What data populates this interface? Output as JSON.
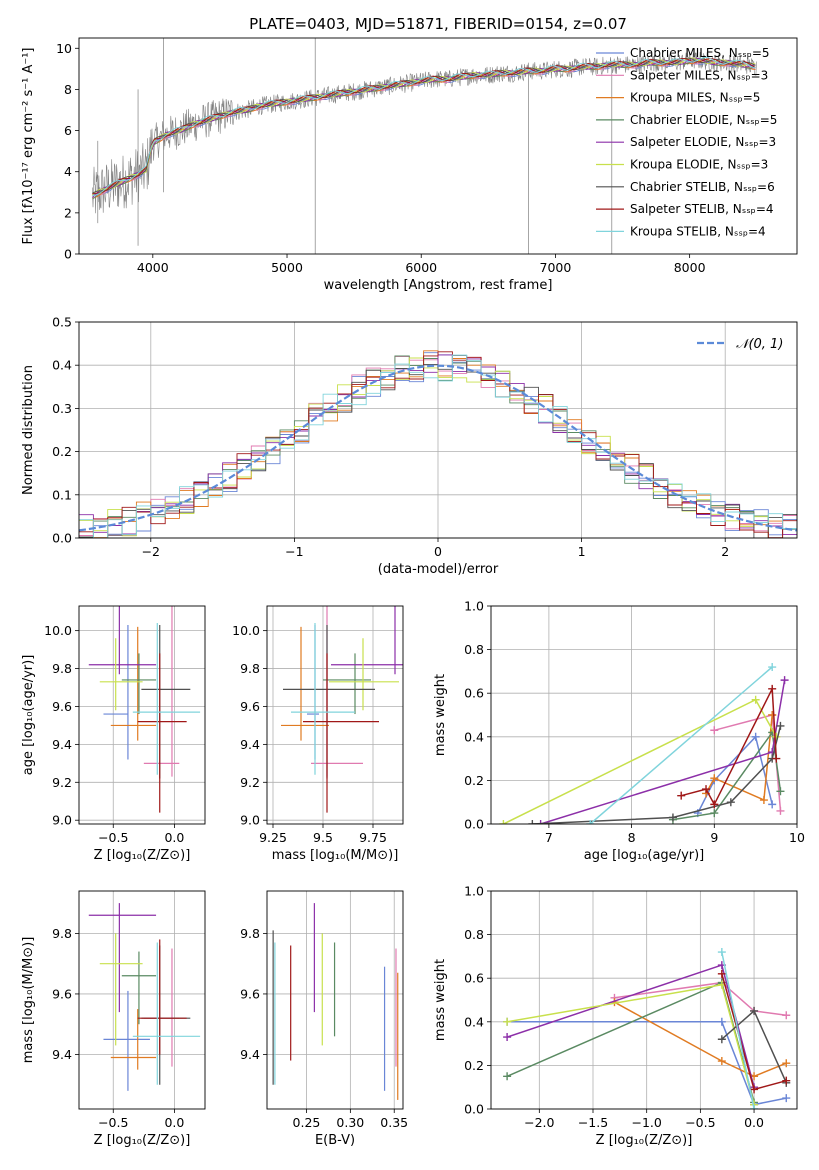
{
  "figure": {
    "title": "PLATE=0403, MJD=51871, FIBERID=0154, z=0.07"
  },
  "colors": {
    "chabrier_miles": "#6a86d6",
    "salpeter_miles": "#e07ab0",
    "kroupa_miles": "#e07b22",
    "chabrier_elodie": "#5a8a62",
    "salpeter_elodie": "#8c2fa8",
    "kroupa_elodie": "#c8e04c",
    "chabrier_stelib": "#505050",
    "salpeter_stelib": "#a01818",
    "kroupa_stelib": "#80d4dc",
    "data": "#808080",
    "normal": "#5b8ad8"
  },
  "chart_data": [
    {
      "type": "line",
      "panel": "spectrum",
      "title": "PLATE=0403, MJD=51871, FIBERID=0154, z=0.07",
      "xlabel": "wavelength [Angstrom, rest frame]",
      "ylabel": "Flux [fλ10⁻¹⁷ erg cm⁻² s⁻¹ A⁻¹]",
      "xlim": [
        3450,
        8800
      ],
      "ylim": [
        0,
        10.5
      ],
      "xticks": [
        4000,
        5000,
        6000,
        7000,
        8000
      ],
      "yticks": [
        0,
        2,
        4,
        6,
        8,
        10
      ],
      "grid": false,
      "legend_position": "right",
      "legend": [
        "Chabrier MILES, Nₛₛₚ=5",
        "Salpeter MILES, Nₛₛₚ=3",
        "Kroupa MILES, Nₛₛₚ=5",
        "Chabrier ELODIE, Nₛₛₚ=5",
        "Salpeter ELODIE, Nₛₛₚ=3",
        "Kroupa ELODIE, Nₛₛₚ=3",
        "Chabrier STELIB, Nₛₛₚ=6",
        "Salpeter STELIB, Nₛₛₚ=4",
        "Kroupa STELIB, Nₛₛₚ=4"
      ],
      "model_x": [
        3550,
        3600,
        3700,
        3800,
        3900,
        3950,
        4000,
        4100,
        4200,
        4300,
        4400,
        4500,
        4600,
        4700,
        4800,
        4900,
        5000,
        5100,
        5200,
        5300,
        5400,
        5500,
        5600,
        5700,
        5800,
        5900,
        6000,
        6100,
        6200,
        6300,
        6400,
        6500,
        6600,
        6700,
        6800,
        6900,
        7000,
        7100,
        7200,
        7300,
        7400,
        7500,
        7600,
        7700,
        7800,
        7900,
        8000,
        8100,
        8200,
        8300,
        8400,
        8500
      ],
      "model_y": [
        2.8,
        3.0,
        3.3,
        3.6,
        3.9,
        4.1,
        5.4,
        5.8,
        6.0,
        6.3,
        6.5,
        6.7,
        6.9,
        7.0,
        7.2,
        7.3,
        7.4,
        7.5,
        7.6,
        7.7,
        7.8,
        7.9,
        8.0,
        8.1,
        8.2,
        8.3,
        8.4,
        8.5,
        8.5,
        8.6,
        8.7,
        8.7,
        8.8,
        8.8,
        8.9,
        8.9,
        9.0,
        9.0,
        9.1,
        9.1,
        9.2,
        9.2,
        9.2,
        9.3,
        9.3,
        9.3,
        9.4,
        9.4,
        9.3,
        9.3,
        9.2,
        9.1
      ]
    },
    {
      "type": "line",
      "panel": "residuals",
      "xlabel": "(data-model)/error",
      "ylabel": "Normed distribution",
      "xlim": [
        -2.5,
        2.5
      ],
      "ylim": [
        0,
        0.5
      ],
      "xticks": [
        -2,
        -1,
        0,
        1,
        2
      ],
      "yticks": [
        0.0,
        0.1,
        0.2,
        0.3,
        0.4,
        0.5
      ],
      "grid": true,
      "legend_position": "top-right",
      "legend": [
        "𝒩(0, 1)"
      ],
      "bins": [
        -2.5,
        -2.4,
        -2.3,
        -2.2,
        -2.1,
        -2.0,
        -1.9,
        -1.8,
        -1.7,
        -1.6,
        -1.5,
        -1.4,
        -1.3,
        -1.2,
        -1.1,
        -1.0,
        -0.9,
        -0.8,
        -0.7,
        -0.6,
        -0.5,
        -0.4,
        -0.3,
        -0.2,
        -0.1,
        0.0,
        0.1,
        0.2,
        0.3,
        0.4,
        0.5,
        0.6,
        0.7,
        0.8,
        0.9,
        1.0,
        1.1,
        1.2,
        1.3,
        1.4,
        1.5,
        1.6,
        1.7,
        1.8,
        1.9,
        2.0,
        2.1,
        2.2,
        2.3,
        2.4,
        2.5
      ]
    },
    {
      "type": "scatter",
      "panel": "age-vs-Z",
      "xlabel": "Z [log₁₀(Z/Z⊙)]",
      "ylabel": "age  [log₁₀(age/yr)]",
      "xlim": [
        -0.78,
        0.25
      ],
      "ylim": [
        8.98,
        10.13
      ],
      "xticks": [
        -0.5,
        0.0
      ],
      "xticklabels": [
        "−0.5",
        "0.0"
      ],
      "yticks": [
        9.0,
        9.2,
        9.4,
        9.6,
        9.8,
        10.0
      ],
      "grid": true,
      "points": [
        {
          "series": "chabrier_miles",
          "x": -0.38,
          "xerr": [
            0.2,
            0.0
          ],
          "y": 9.56,
          "yerr": [
            0.24,
            0.47
          ]
        },
        {
          "series": "salpeter_miles",
          "x": -0.02,
          "xerr": [
            0.23,
            0.06
          ],
          "y": 9.3,
          "yerr": [
            0.07,
            0.87
          ]
        },
        {
          "series": "kroupa_miles",
          "x": -0.3,
          "xerr": [
            0.22,
            0.15
          ],
          "y": 9.5,
          "yerr": [
            0.08,
            0.52
          ]
        },
        {
          "series": "chabrier_elodie",
          "x": -0.29,
          "xerr": [
            0.14,
            0.14
          ],
          "y": 9.74,
          "yerr": [
            0.18,
            0.14
          ]
        },
        {
          "series": "salpeter_elodie",
          "x": -0.45,
          "xerr": [
            0.25,
            0.3
          ],
          "y": 9.82,
          "yerr": [
            0.05,
            0.4
          ]
        },
        {
          "series": "kroupa_elodie",
          "x": -0.48,
          "xerr": [
            0.13,
            0.22
          ],
          "y": 9.73,
          "yerr": [
            0.15,
            0.23
          ]
        },
        {
          "series": "chabrier_stelib",
          "x": -0.12,
          "xerr": [
            0.15,
            0.25
          ],
          "y": 9.69,
          "yerr": [
            0.47,
            0.34
          ]
        },
        {
          "series": "salpeter_stelib",
          "x": -0.12,
          "xerr": [
            0.18,
            0.22
          ],
          "y": 9.52,
          "yerr": [
            0.48,
            0.36
          ]
        },
        {
          "series": "kroupa_stelib",
          "x": -0.14,
          "xerr": [
            0.2,
            0.35
          ],
          "y": 9.57,
          "yerr": [
            0.33,
            0.47
          ]
        }
      ]
    },
    {
      "type": "scatter",
      "panel": "age-vs-mass",
      "xlabel": "mass [log₁₀(M/M⊙)]",
      "xlim": [
        9.22,
        9.9
      ],
      "ylim": [
        8.98,
        10.13
      ],
      "xticks": [
        9.25,
        9.5,
        9.75
      ],
      "yticks": [
        9.0,
        9.2,
        9.4,
        9.6,
        9.8,
        10.0
      ],
      "grid": true,
      "points": [
        {
          "series": "chabrier_miles",
          "x": 9.46,
          "xerr": [
            0.04,
            0.02
          ],
          "y": 9.56,
          "yerr": [
            0.24,
            0.47
          ]
        },
        {
          "series": "salpeter_miles",
          "x": 9.52,
          "xerr": [
            0.08,
            0.18
          ],
          "y": 9.3,
          "yerr": [
            0.07,
            0.87
          ]
        },
        {
          "series": "kroupa_miles",
          "x": 9.39,
          "xerr": [
            0.1,
            0.14
          ],
          "y": 9.5,
          "yerr": [
            0.08,
            0.52
          ]
        },
        {
          "series": "chabrier_elodie",
          "x": 9.66,
          "xerr": [
            0.16,
            0.08
          ],
          "y": 9.74,
          "yerr": [
            0.18,
            0.14
          ]
        },
        {
          "series": "salpeter_elodie",
          "x": 9.86,
          "xerr": [
            0.32,
            0.1
          ],
          "y": 9.82,
          "yerr": [
            0.05,
            0.4
          ]
        },
        {
          "series": "kroupa_elodie",
          "x": 9.7,
          "xerr": [
            0.17,
            0.18
          ],
          "y": 9.73,
          "yerr": [
            0.15,
            0.23
          ]
        },
        {
          "series": "chabrier_stelib",
          "x": 9.52,
          "xerr": [
            0.22,
            0.24
          ],
          "y": 9.69,
          "yerr": [
            0.47,
            0.34
          ]
        },
        {
          "series": "salpeter_stelib",
          "x": 9.52,
          "xerr": [
            0.12,
            0.26
          ],
          "y": 9.52,
          "yerr": [
            0.48,
            0.36
          ]
        },
        {
          "series": "kroupa_stelib",
          "x": 9.46,
          "xerr": [
            0.12,
            0.2
          ],
          "y": 9.57,
          "yerr": [
            0.33,
            0.47
          ]
        }
      ]
    },
    {
      "type": "line",
      "panel": "weight-vs-age",
      "xlabel": "age  [log₁₀(age/yr)]",
      "ylabel": "mass weight",
      "xlim": [
        6.3,
        10.0
      ],
      "ylim": [
        0,
        1.0
      ],
      "xticks": [
        7,
        8,
        9,
        10
      ],
      "yticks": [
        0.0,
        0.2,
        0.4,
        0.6,
        0.8,
        1.0
      ],
      "grid": true,
      "series": [
        {
          "name": "chabrier_miles",
          "x": [
            8.8,
            9.0,
            9.5,
            9.7
          ],
          "y": [
            0.05,
            0.2,
            0.4,
            0.09
          ]
        },
        {
          "name": "salpeter_miles",
          "x": [
            9.0,
            9.7,
            9.8
          ],
          "y": [
            0.43,
            0.5,
            0.06
          ]
        },
        {
          "name": "kroupa_miles",
          "x": [
            8.9,
            9.0,
            9.6,
            9.7
          ],
          "y": [
            0.14,
            0.21,
            0.11,
            0.5
          ]
        },
        {
          "name": "chabrier_elodie",
          "x": [
            8.5,
            9.0,
            9.7,
            9.8
          ],
          "y": [
            0.02,
            0.05,
            0.42,
            0.15
          ]
        },
        {
          "name": "salpeter_elodie",
          "x": [
            6.9,
            9.7,
            9.85
          ],
          "y": [
            0.0,
            0.33,
            0.66
          ]
        },
        {
          "name": "kroupa_elodie",
          "x": [
            6.45,
            9.5,
            9.75
          ],
          "y": [
            0.0,
            0.57,
            0.4
          ]
        },
        {
          "name": "chabrier_stelib",
          "x": [
            6.8,
            8.5,
            9.2,
            9.7,
            9.8
          ],
          "y": [
            0.0,
            0.03,
            0.1,
            0.3,
            0.45
          ]
        },
        {
          "name": "salpeter_stelib",
          "x": [
            8.6,
            8.9,
            9.0,
            9.7,
            9.75
          ],
          "y": [
            0.13,
            0.16,
            0.09,
            0.62,
            0.3
          ]
        },
        {
          "name": "kroupa_stelib",
          "x": [
            7.5,
            9.7
          ],
          "y": [
            0.0,
            0.72
          ]
        }
      ]
    },
    {
      "type": "scatter",
      "panel": "mass-vs-Z",
      "xlabel": "Z [log₁₀(Z/Z⊙)]",
      "ylabel": "mass [log₁₀(M/M⊙)]",
      "xlim": [
        -0.78,
        0.25
      ],
      "ylim": [
        9.22,
        9.94
      ],
      "xticks": [
        -0.5,
        0.0
      ],
      "xticklabels": [
        "−0.5",
        "0.0"
      ],
      "yticks": [
        9.4,
        9.6,
        9.8
      ],
      "grid": true,
      "points": [
        {
          "series": "chabrier_miles",
          "x": -0.38,
          "xerr": [
            0.2,
            0.18
          ],
          "y": 9.45,
          "yerr": [
            0.17,
            0.16
          ]
        },
        {
          "series": "salpeter_miles",
          "x": -0.02,
          "xerr": [
            0.23,
            0.06
          ],
          "y": 9.52,
          "yerr": [
            0.16,
            0.23
          ]
        },
        {
          "series": "kroupa_miles",
          "x": -0.3,
          "xerr": [
            0.22,
            0.15
          ],
          "y": 9.39,
          "yerr": [
            0.04,
            0.16
          ]
        },
        {
          "series": "chabrier_elodie",
          "x": -0.29,
          "xerr": [
            0.14,
            0.14
          ],
          "y": 9.66,
          "yerr": [
            0.16,
            0.08
          ]
        },
        {
          "series": "salpeter_elodie",
          "x": -0.45,
          "xerr": [
            0.25,
            0.3
          ],
          "y": 9.86,
          "yerr": [
            0.32,
            0.04
          ]
        },
        {
          "series": "kroupa_elodie",
          "x": -0.48,
          "xerr": [
            0.13,
            0.22
          ],
          "y": 9.7,
          "yerr": [
            0.27,
            0.1
          ]
        },
        {
          "series": "chabrier_stelib",
          "x": -0.12,
          "xerr": [
            0.15,
            0.25
          ],
          "y": 9.52,
          "yerr": [
            0.22,
            0.24
          ]
        },
        {
          "series": "salpeter_stelib",
          "x": -0.12,
          "xerr": [
            0.18,
            0.22
          ],
          "y": 9.52,
          "yerr": [
            0.12,
            0.26
          ]
        },
        {
          "series": "kroupa_stelib",
          "x": -0.14,
          "xerr": [
            0.2,
            0.35
          ],
          "y": 9.46,
          "yerr": [
            0.16,
            0.31
          ]
        }
      ]
    },
    {
      "type": "scatter",
      "panel": "mass-vs-EBV",
      "xlabel": "E(B-V)",
      "xlim": [
        0.205,
        0.36
      ],
      "ylim": [
        9.22,
        9.94
      ],
      "xticks": [
        0.25,
        0.3,
        0.35
      ],
      "yticks": [
        9.4,
        9.6,
        9.8
      ],
      "grid": true,
      "points": [
        {
          "series": "chabrier_stelib",
          "x": 0.212,
          "y": 9.52,
          "yerr": [
            0.22,
            0.29
          ]
        },
        {
          "series": "kroupa_stelib",
          "x": 0.214,
          "y": 9.46,
          "yerr": [
            0.16,
            0.31
          ]
        },
        {
          "series": "salpeter_stelib",
          "x": 0.232,
          "y": 9.52,
          "yerr": [
            0.14,
            0.24
          ]
        },
        {
          "series": "salpeter_elodie",
          "x": 0.259,
          "y": 9.86,
          "yerr": [
            0.32,
            0.04
          ]
        },
        {
          "series": "kroupa_elodie",
          "x": 0.268,
          "y": 9.7,
          "yerr": [
            0.27,
            0.1
          ]
        },
        {
          "series": "chabrier_elodie",
          "x": 0.282,
          "y": 9.66,
          "yerr": [
            0.2,
            0.11
          ]
        },
        {
          "series": "chabrier_miles",
          "x": 0.339,
          "y": 9.45,
          "yerr": [
            0.17,
            0.24
          ]
        },
        {
          "series": "salpeter_miles",
          "x": 0.352,
          "y": 9.52,
          "yerr": [
            0.16,
            0.23
          ]
        },
        {
          "series": "kroupa_miles",
          "x": 0.354,
          "y": 9.39,
          "yerr": [
            0.14,
            0.28
          ]
        }
      ]
    },
    {
      "type": "line",
      "panel": "weight-vs-Z",
      "xlabel": "Z [log₁₀(Z/Z⊙)]",
      "ylabel": "mass weight",
      "xlim": [
        -2.45,
        0.4
      ],
      "ylim": [
        0,
        1.0
      ],
      "xticks": [
        -2.0,
        -1.5,
        -1.0,
        -0.5,
        0.0
      ],
      "xticklabels": [
        "−2.0",
        "−1.5",
        "−1.0",
        "−0.5",
        "0.0"
      ],
      "yticks": [
        0.0,
        0.2,
        0.4,
        0.6,
        0.8,
        1.0
      ],
      "grid": true,
      "series": [
        {
          "name": "chabrier_miles",
          "x": [
            -2.3,
            -0.3,
            0.0,
            0.3
          ],
          "y": [
            0.4,
            0.4,
            0.02,
            0.05
          ]
        },
        {
          "name": "salpeter_miles",
          "x": [
            -1.3,
            -0.3,
            0.0,
            0.3
          ],
          "y": [
            0.51,
            0.58,
            0.45,
            0.43
          ]
        },
        {
          "name": "kroupa_miles",
          "x": [
            -1.3,
            -0.3,
            0.0,
            0.3
          ],
          "y": [
            0.49,
            0.22,
            0.15,
            0.21
          ]
        },
        {
          "name": "chabrier_elodie",
          "x": [
            -2.3,
            -0.3,
            0.0
          ],
          "y": [
            0.15,
            0.58,
            0.03
          ]
        },
        {
          "name": "salpeter_elodie",
          "x": [
            -2.3,
            -0.3,
            0.0
          ],
          "y": [
            0.33,
            0.66,
            0.1
          ]
        },
        {
          "name": "kroupa_elodie",
          "x": [
            -2.3,
            -0.3,
            0.0
          ],
          "y": [
            0.4,
            0.57,
            0.02
          ]
        },
        {
          "name": "chabrier_stelib",
          "x": [
            -0.3,
            0.0,
            0.3
          ],
          "y": [
            0.32,
            0.45,
            0.12
          ]
        },
        {
          "name": "salpeter_stelib",
          "x": [
            -0.3,
            0.0,
            0.3
          ],
          "y": [
            0.62,
            0.09,
            0.13
          ]
        },
        {
          "name": "kroupa_stelib",
          "x": [
            -0.3,
            0.0
          ],
          "y": [
            0.72,
            0.0
          ]
        }
      ]
    }
  ]
}
